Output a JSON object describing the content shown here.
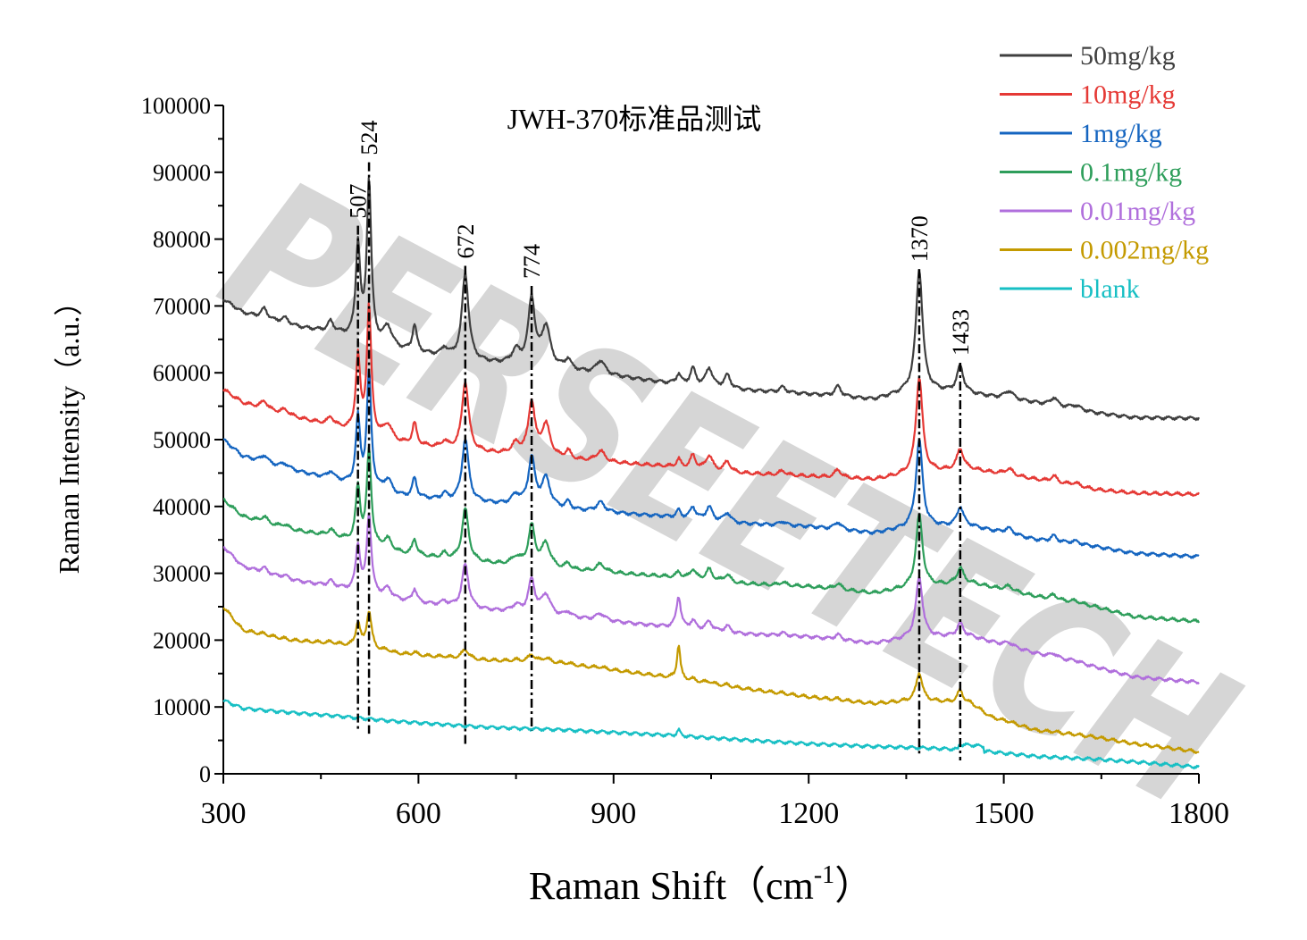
{
  "chart_data": {
    "type": "line",
    "title": "JWH-370标准品测试",
    "xlabel": "Raman Shift（cm",
    "xlabel_sup": "-1",
    "xlabel_end": "）",
    "ylabel": "Raman Intensity（a.u.）",
    "xlim": [
      300,
      1800
    ],
    "ylim": [
      0,
      100000
    ],
    "xticks": [
      "300",
      "600",
      "900",
      "1200",
      "1500",
      "1800"
    ],
    "yticks": [
      "0",
      "10000",
      "20000",
      "30000",
      "40000",
      "50000",
      "60000",
      "70000",
      "80000",
      "90000",
      "100000"
    ],
    "watermark": "PERSEETECH",
    "peak_lines": [
      {
        "label": "507",
        "x": 507,
        "y_top": 82000,
        "y_bottom": 6500
      },
      {
        "label": "524",
        "x": 524,
        "y_top": 91500,
        "y_bottom": 6000
      },
      {
        "label": "672",
        "x": 672,
        "y_top": 76000,
        "y_bottom": 4000
      },
      {
        "label": "774",
        "x": 774,
        "y_top": 73000,
        "y_bottom": 6500
      },
      {
        "label": "1370",
        "x": 1370,
        "y_top": 75500,
        "y_bottom": 2500
      },
      {
        "label": "1433",
        "x": 1433,
        "y_top": 61500,
        "y_bottom": 2000
      }
    ],
    "series": [
      {
        "name": "50mg/kg",
        "color": "#3f3f3f",
        "start": 71000,
        "end": 53200,
        "scale": 1.0,
        "knots": [
          [
            300,
            71000
          ],
          [
            330,
            69000
          ],
          [
            400,
            67000
          ],
          [
            470,
            66000
          ],
          [
            560,
            63500
          ],
          [
            700,
            61500
          ],
          [
            820,
            60500
          ],
          [
            980,
            58500
          ],
          [
            1080,
            57500
          ],
          [
            1200,
            56800
          ],
          [
            1300,
            56000
          ],
          [
            1370,
            57500
          ],
          [
            1450,
            56800
          ],
          [
            1550,
            55500
          ],
          [
            1640,
            54000
          ],
          [
            1700,
            53300
          ],
          [
            1800,
            53200
          ]
        ]
      },
      {
        "name": "10mg/kg",
        "color": "#e53935",
        "start": 57500,
        "end": 41800,
        "scale": 0.8,
        "knots": [
          [
            300,
            57500
          ],
          [
            330,
            55500
          ],
          [
            400,
            53500
          ],
          [
            470,
            52000
          ],
          [
            560,
            49500
          ],
          [
            700,
            48000
          ],
          [
            820,
            47000
          ],
          [
            980,
            46000
          ],
          [
            1080,
            45000
          ],
          [
            1200,
            44500
          ],
          [
            1300,
            44000
          ],
          [
            1370,
            45000
          ],
          [
            1450,
            45500
          ],
          [
            1550,
            44000
          ],
          [
            1640,
            42500
          ],
          [
            1700,
            42000
          ],
          [
            1800,
            41800
          ]
        ]
      },
      {
        "name": "1mg/kg",
        "color": "#1565c0",
        "start": 50000,
        "end": 32500,
        "scale": 0.72,
        "knots": [
          [
            300,
            50000
          ],
          [
            330,
            47500
          ],
          [
            400,
            45500
          ],
          [
            470,
            44000
          ],
          [
            560,
            41500
          ],
          [
            700,
            40500
          ],
          [
            820,
            39500
          ],
          [
            980,
            38500
          ],
          [
            1080,
            37500
          ],
          [
            1200,
            37000
          ],
          [
            1300,
            36000
          ],
          [
            1370,
            37000
          ],
          [
            1450,
            37000
          ],
          [
            1550,
            35000
          ],
          [
            1640,
            34000
          ],
          [
            1700,
            33000
          ],
          [
            1800,
            32500
          ]
        ]
      },
      {
        "name": "0.1mg/kg",
        "color": "#2e9e5b",
        "start": 41000,
        "end": 22800,
        "scale": 0.6,
        "knots": [
          [
            300,
            41000
          ],
          [
            330,
            38500
          ],
          [
            400,
            36500
          ],
          [
            470,
            35500
          ],
          [
            560,
            33000
          ],
          [
            700,
            31500
          ],
          [
            820,
            30500
          ],
          [
            980,
            29500
          ],
          [
            1080,
            28500
          ],
          [
            1200,
            28000
          ],
          [
            1300,
            27000
          ],
          [
            1370,
            28000
          ],
          [
            1450,
            28500
          ],
          [
            1550,
            26500
          ],
          [
            1640,
            25000
          ],
          [
            1700,
            23500
          ],
          [
            1800,
            22800
          ]
        ]
      },
      {
        "name": "0.01mg/kg",
        "color": "#b06fdc",
        "start": 34000,
        "end": 13700,
        "scale": 0.5,
        "knots": [
          [
            300,
            34000
          ],
          [
            330,
            31000
          ],
          [
            400,
            29000
          ],
          [
            470,
            28000
          ],
          [
            560,
            26000
          ],
          [
            700,
            24500
          ],
          [
            820,
            23500
          ],
          [
            980,
            22000
          ],
          [
            1080,
            21000
          ],
          [
            1200,
            20500
          ],
          [
            1300,
            19500
          ],
          [
            1370,
            20500
          ],
          [
            1450,
            20500
          ],
          [
            1550,
            18000
          ],
          [
            1640,
            16000
          ],
          [
            1700,
            14500
          ],
          [
            1800,
            13700
          ]
        ]
      },
      {
        "name": "0.002mg/kg",
        "color": "#c49a00",
        "start": 25000,
        "end": 3300,
        "scale": 0.11,
        "knots": [
          [
            300,
            25000
          ],
          [
            330,
            21500
          ],
          [
            400,
            20000
          ],
          [
            470,
            19500
          ],
          [
            560,
            18000
          ],
          [
            700,
            17000
          ],
          [
            820,
            16500
          ],
          [
            980,
            14500
          ],
          [
            1080,
            13000
          ],
          [
            1200,
            11500
          ],
          [
            1300,
            10500
          ],
          [
            1370,
            11000
          ],
          [
            1450,
            10500
          ],
          [
            1480,
            8500
          ],
          [
            1550,
            6500
          ],
          [
            1640,
            5500
          ],
          [
            1700,
            4500
          ],
          [
            1800,
            3300
          ]
        ]
      },
      {
        "name": "blank",
        "color": "#17bfc4",
        "start": 11000,
        "end": 1000,
        "scale": 0.0,
        "knots": [
          [
            300,
            11000
          ],
          [
            330,
            9800
          ],
          [
            400,
            9200
          ],
          [
            470,
            8700
          ],
          [
            560,
            7900
          ],
          [
            700,
            7000
          ],
          [
            820,
            6600
          ],
          [
            980,
            5800
          ],
          [
            1080,
            5200
          ],
          [
            1200,
            4500
          ],
          [
            1300,
            4100
          ],
          [
            1370,
            3900
          ],
          [
            1450,
            3600
          ],
          [
            1550,
            2600
          ],
          [
            1640,
            2200
          ],
          [
            1700,
            1800
          ],
          [
            1800,
            1000
          ]
        ]
      }
    ],
    "peaks_50mgkg": [
      [
        363,
        1500,
        6
      ],
      [
        395,
        1000,
        8
      ],
      [
        465,
        1500,
        5
      ],
      [
        507,
        14000,
        4
      ],
      [
        524,
        24000,
        4
      ],
      [
        553,
        3000,
        8
      ],
      [
        594,
        4000,
        4
      ],
      [
        640,
        1200,
        5
      ],
      [
        672,
        13000,
        6
      ],
      [
        750,
        2000,
        8
      ],
      [
        774,
        10000,
        6
      ],
      [
        796,
        6000,
        8
      ],
      [
        830,
        1500,
        5
      ],
      [
        880,
        2000,
        8
      ],
      [
        1000,
        1500,
        4
      ],
      [
        1022,
        2500,
        5
      ],
      [
        1047,
        2800,
        6
      ],
      [
        1075,
        2000,
        6
      ],
      [
        1160,
        800,
        6
      ],
      [
        1245,
        1500,
        6
      ],
      [
        1370,
        18000,
        6
      ],
      [
        1433,
        4000,
        6
      ],
      [
        1508,
        1200,
        8
      ],
      [
        1577,
        1200,
        6
      ],
      [
        1610,
        600,
        10
      ]
    ]
  },
  "legend": [
    {
      "label": "50mg/kg",
      "color": "#3f3f3f"
    },
    {
      "label": "10mg/kg",
      "color": "#e53935"
    },
    {
      "label": "1mg/kg",
      "color": "#1565c0"
    },
    {
      "label": "0.1mg/kg",
      "color": "#2e9e5b"
    },
    {
      "label": "0.01mg/kg",
      "color": "#b06fdc"
    },
    {
      "label": "0.002mg/kg",
      "color": "#c49a00"
    },
    {
      "label": "blank",
      "color": "#17bfc4"
    }
  ]
}
